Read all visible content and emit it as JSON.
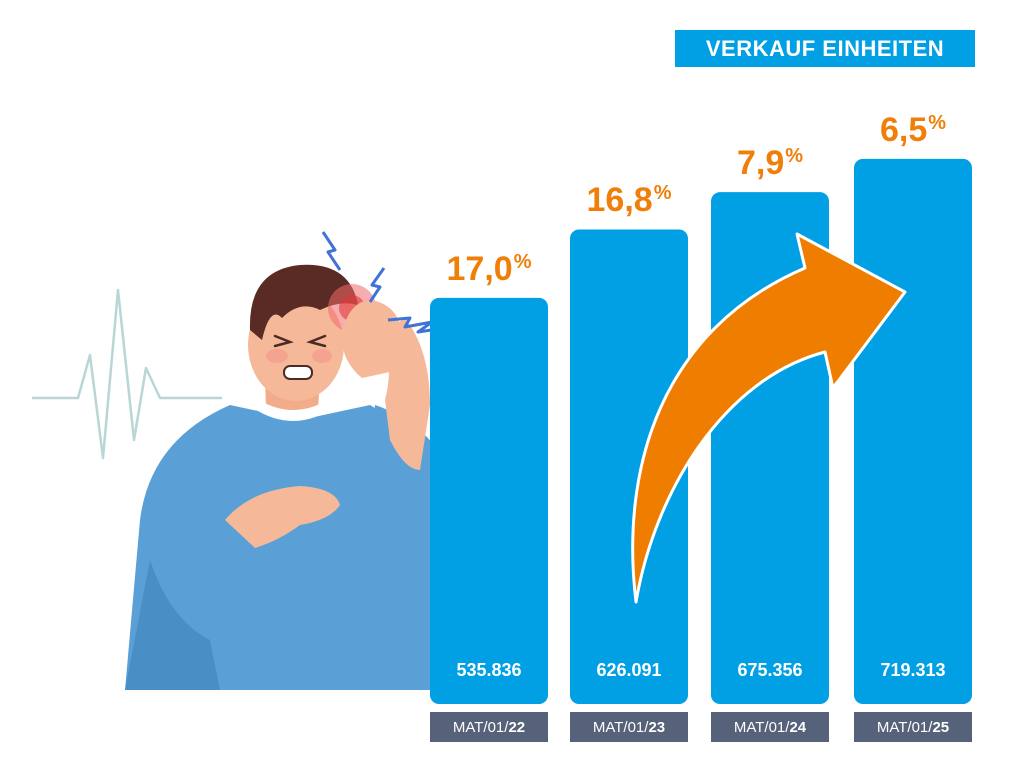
{
  "chart_data": {
    "type": "bar",
    "title": "VERKAUF EINHEITEN",
    "categories": [
      "MAT/01/22",
      "MAT/01/23",
      "MAT/01/24",
      "MAT/01/25"
    ],
    "category_parts": [
      {
        "prefix": "MAT/01/",
        "year": "22"
      },
      {
        "prefix": "MAT/01/",
        "year": "23"
      },
      {
        "prefix": "MAT/01/",
        "year": "24"
      },
      {
        "prefix": "MAT/01/",
        "year": "25"
      }
    ],
    "values": [
      535836,
      626091,
      675356,
      719313
    ],
    "value_labels": [
      "535.836",
      "626.091",
      "675.356",
      "719.313"
    ],
    "growth_labels": [
      "17,0",
      "16,8",
      "7,9",
      "6,5"
    ],
    "growth_unit": "%",
    "ylim": [
      0,
      760000
    ],
    "bar_color": "#019fe3",
    "growth_color": "#f07f09",
    "xlabel_bg": "#56627a"
  }
}
